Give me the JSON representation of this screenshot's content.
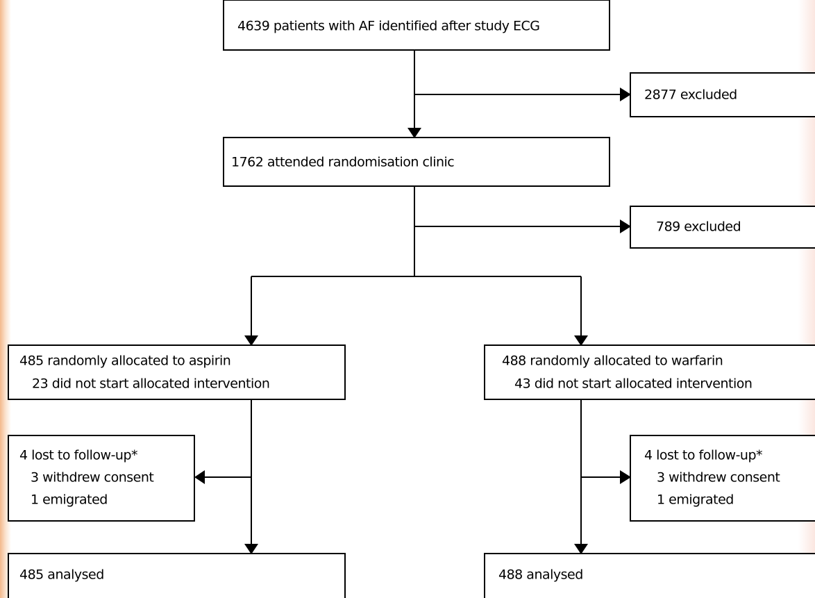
{
  "nodes": [
    {
      "lines": [
        "4639 patients with AF identified after study ECG"
      ]
    },
    {
      "lines": [
        "2877 excluded"
      ]
    },
    {
      "lines": [
        "1762 attended randomisation clinic"
      ]
    },
    {
      "lines": [
        "789 excluded"
      ]
    },
    {
      "lines": [
        "485 randomly allocated to aspirin",
        "23 did not start allocated intervention"
      ]
    },
    {
      "lines": [
        "488 randomly allocated to warfarin",
        "43 did not start allocated intervention"
      ]
    },
    {
      "lines": [
        "4 lost to follow-up*",
        "3 withdrew consent",
        "1 emigrated"
      ]
    },
    {
      "lines": [
        "4 lost to follow-up*",
        "3 withdrew consent",
        "1 emigrated"
      ]
    },
    {
      "lines": [
        "485 analysed"
      ]
    },
    {
      "lines": [
        "488 analysed"
      ]
    }
  ]
}
